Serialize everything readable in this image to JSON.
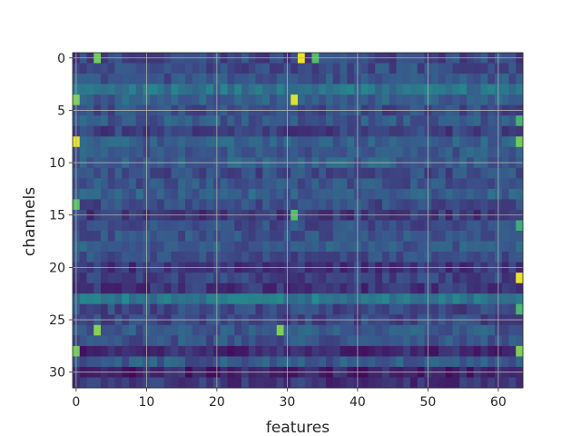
{
  "chart_data": {
    "type": "heatmap",
    "xlabel": "features",
    "ylabel": "channels",
    "x_range": [
      -0.5,
      63.5
    ],
    "y_range": [
      -0.5,
      31.5
    ],
    "y_inverted": true,
    "colormap": "viridis",
    "grid": true,
    "grid_color": "#b0b0b0",
    "xticks": [
      0,
      10,
      20,
      30,
      40,
      50,
      60
    ],
    "yticks": [
      0,
      5,
      10,
      15,
      20,
      25,
      30
    ],
    "n_rows": 32,
    "n_cols": 64,
    "row_base_values": [
      0.22,
      0.24,
      0.26,
      0.38,
      0.3,
      0.24,
      0.28,
      0.2,
      0.3,
      0.28,
      0.3,
      0.24,
      0.26,
      0.3,
      0.24,
      0.18,
      0.24,
      0.26,
      0.28,
      0.24,
      0.16,
      0.2,
      0.16,
      0.4,
      0.22,
      0.22,
      0.28,
      0.26,
      0.12,
      0.28,
      0.1,
      0.16
    ],
    "bright_cells": [
      {
        "row": 0,
        "col": 3,
        "value": 0.78
      },
      {
        "row": 0,
        "col": 32,
        "value": 0.98
      },
      {
        "row": 0,
        "col": 34,
        "value": 0.7
      },
      {
        "row": 4,
        "col": 0,
        "value": 0.8
      },
      {
        "row": 4,
        "col": 31,
        "value": 0.95
      },
      {
        "row": 6,
        "col": 63,
        "value": 0.65
      },
      {
        "row": 8,
        "col": 0,
        "value": 0.97
      },
      {
        "row": 8,
        "col": 63,
        "value": 0.78
      },
      {
        "row": 14,
        "col": 0,
        "value": 0.72
      },
      {
        "row": 15,
        "col": 31,
        "value": 0.7
      },
      {
        "row": 16,
        "col": 63,
        "value": 0.62
      },
      {
        "row": 21,
        "col": 63,
        "value": 0.97
      },
      {
        "row": 24,
        "col": 63,
        "value": 0.66
      },
      {
        "row": 26,
        "col": 3,
        "value": 0.82
      },
      {
        "row": 26,
        "col": 29,
        "value": 0.8
      },
      {
        "row": 28,
        "col": 0,
        "value": 0.78
      },
      {
        "row": 28,
        "col": 63,
        "value": 0.8
      }
    ]
  }
}
